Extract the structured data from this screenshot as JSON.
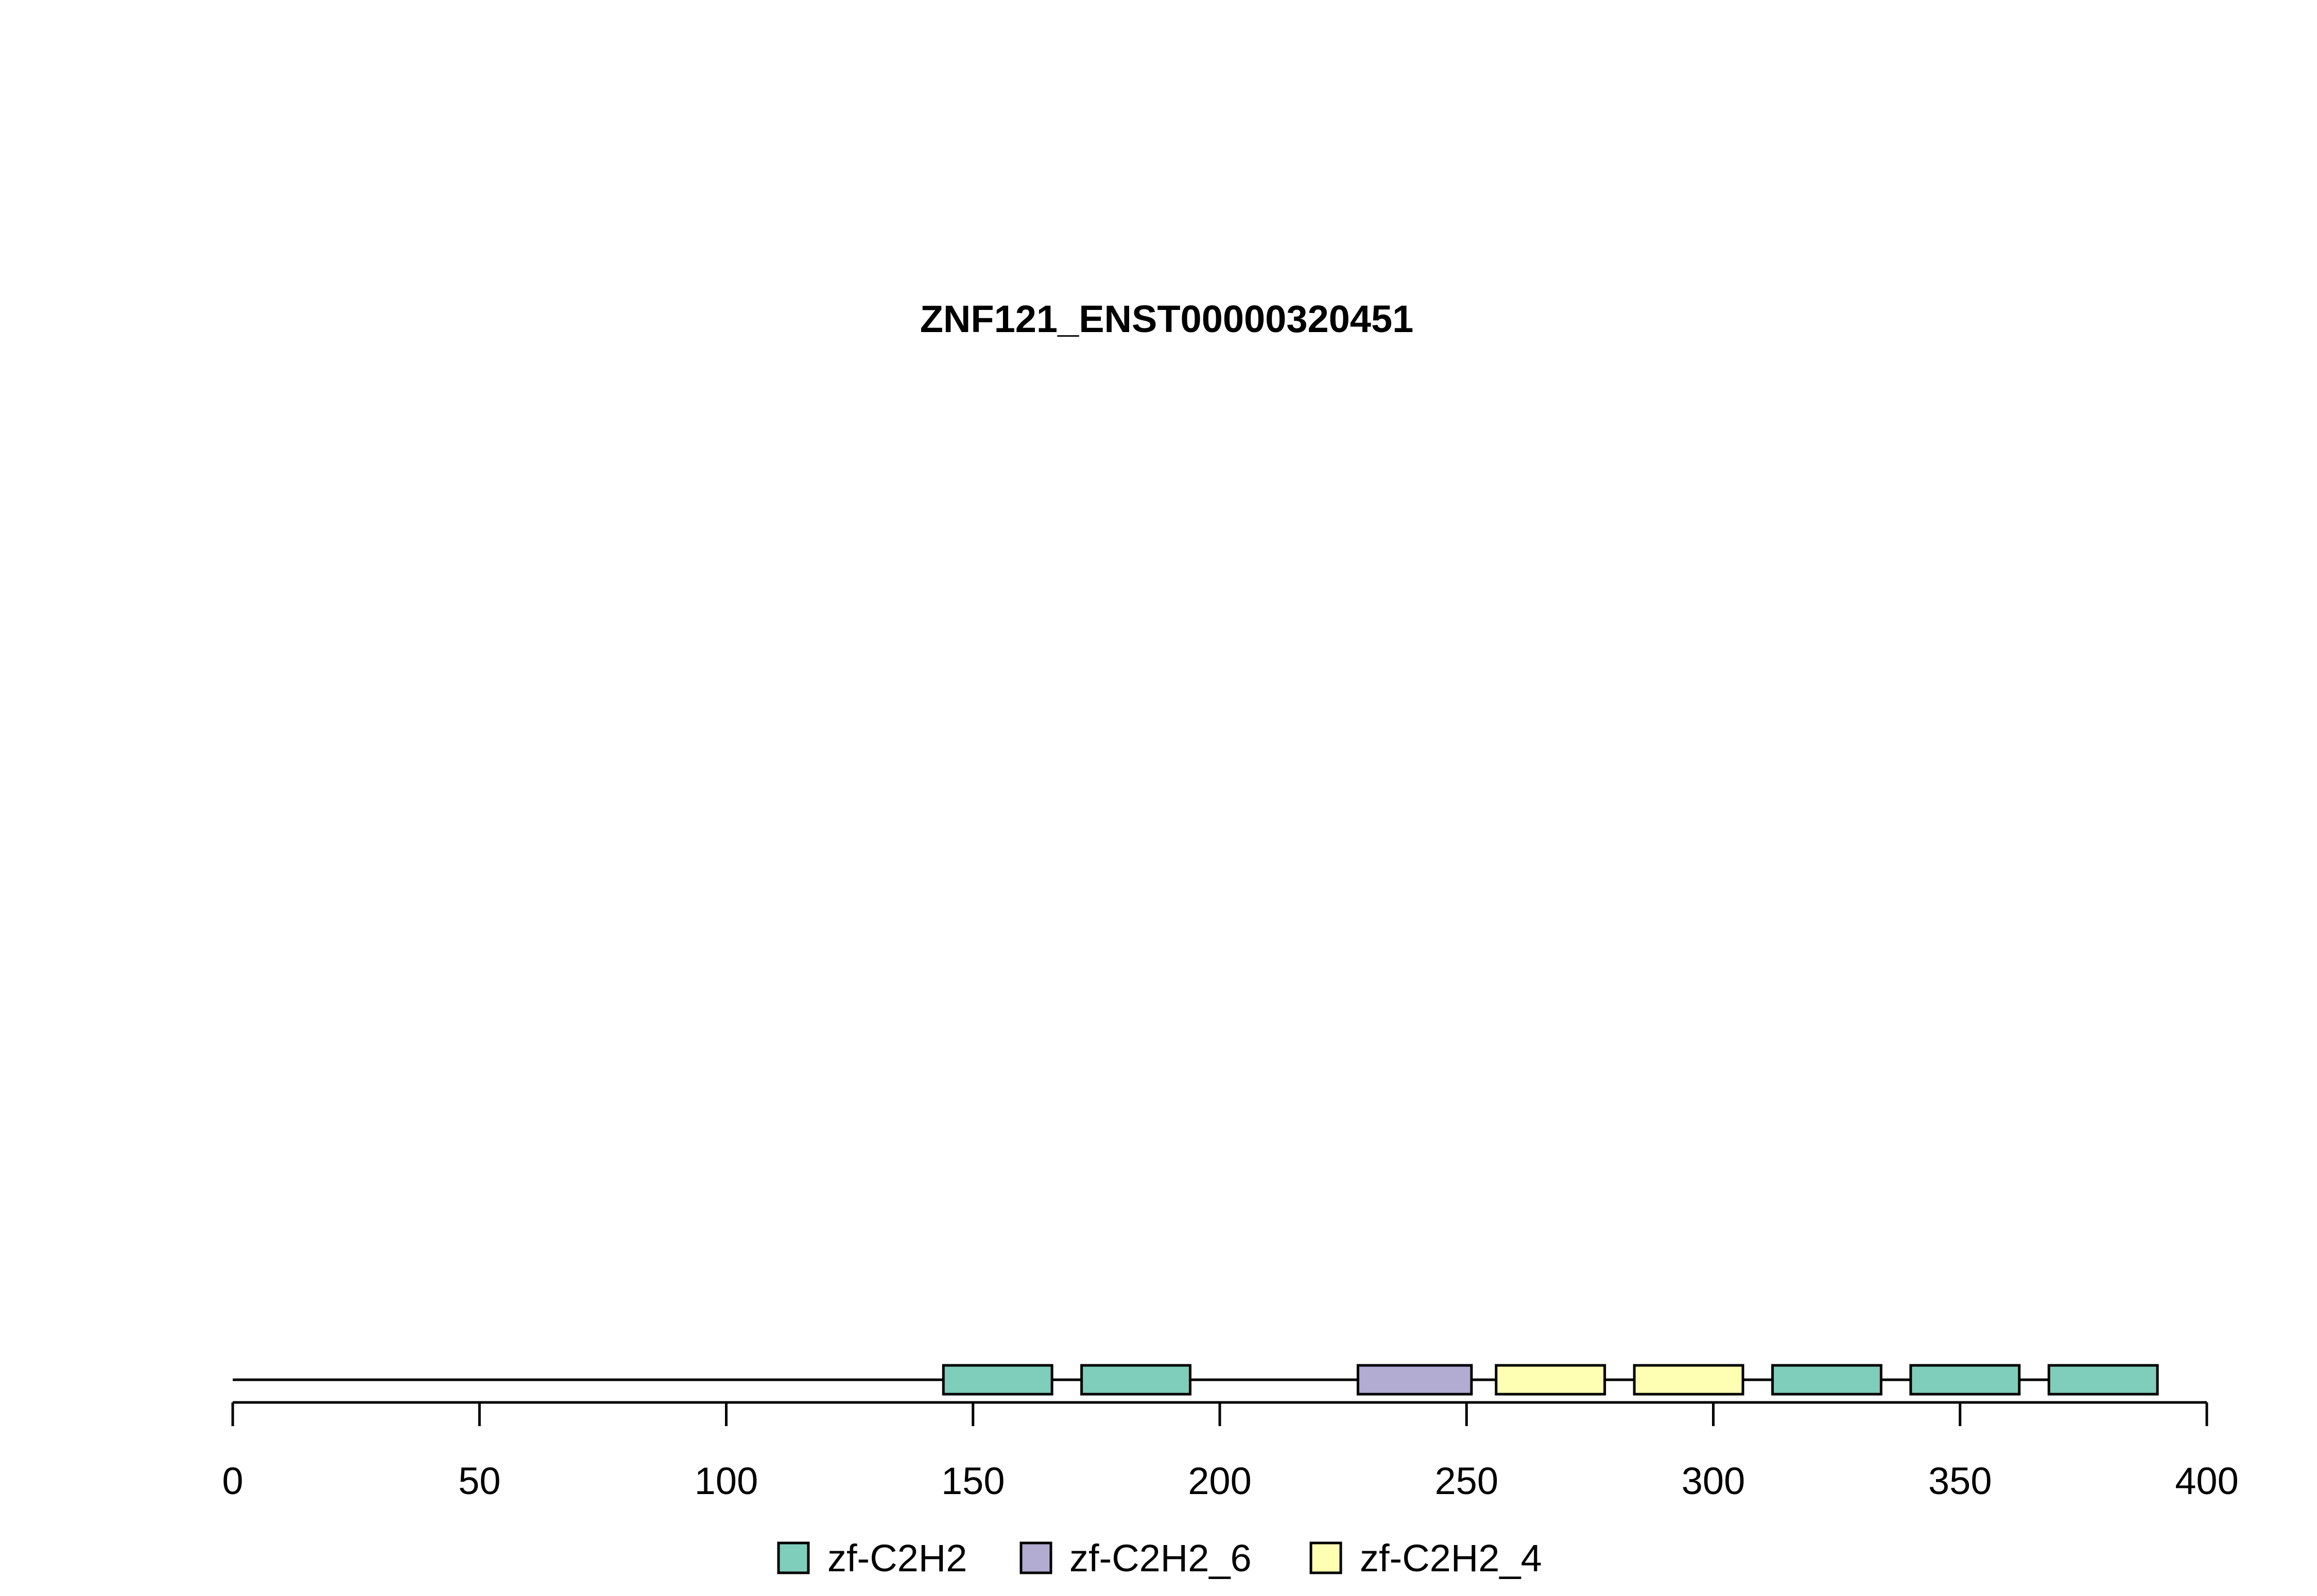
{
  "chart_data": {
    "type": "domain-track",
    "title": "ZNF121_ENST00000320451",
    "protein_length": 390,
    "xlim": [
      0,
      400
    ],
    "x_ticks": [
      0,
      50,
      100,
      150,
      200,
      250,
      300,
      350,
      400
    ],
    "domains": [
      {
        "name": "zf-C2H2",
        "start": 144,
        "end": 166
      },
      {
        "name": "zf-C2H2",
        "start": 172,
        "end": 194
      },
      {
        "name": "zf-C2H2_6",
        "start": 228,
        "end": 251
      },
      {
        "name": "zf-C2H2_4",
        "start": 256,
        "end": 278
      },
      {
        "name": "zf-C2H2_4",
        "start": 284,
        "end": 306
      },
      {
        "name": "zf-C2H2",
        "start": 312,
        "end": 334
      },
      {
        "name": "zf-C2H2",
        "start": 340,
        "end": 362
      },
      {
        "name": "zf-C2H2",
        "start": 368,
        "end": 390
      }
    ],
    "legend": [
      {
        "name": "zf-C2H2",
        "color": "#7fcdbb"
      },
      {
        "name": "zf-C2H2_6",
        "color": "#b2abd2"
      },
      {
        "name": "zf-C2H2_4",
        "color": "#ffffb3"
      }
    ],
    "legend_position": "bottom"
  }
}
